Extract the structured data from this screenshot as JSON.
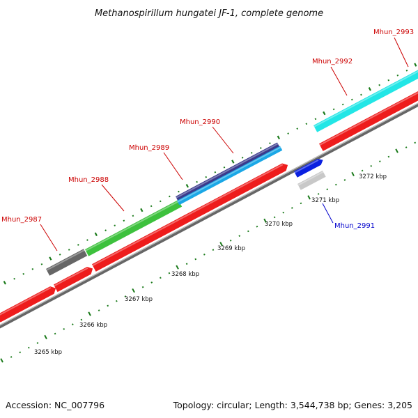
{
  "title": "Methanospirillum hungatei JF-1, complete genome",
  "footer": {
    "accession": "Accession: NC_007796",
    "summary": "Topology: circular; Length: 3,544,738 bp; Genes: 3,205"
  },
  "colors": {
    "cds": "#ee1c1c",
    "backbone": "#808080",
    "tick": "#1a7a1a",
    "label_red": "#cc0000",
    "label_blue": "#0000cc"
  },
  "scale_ticks": [
    "3265 kbp",
    "3266 kbp",
    "3267 kbp",
    "3268 kbp",
    "3269 kbp",
    "3270 kbp",
    "3271 kbp",
    "3272 kbp"
  ],
  "genes": [
    {
      "name": "Mhun_2987",
      "color": "#666666",
      "label_color": "#cc0000"
    },
    {
      "name": "Mhun_2988",
      "color": "#3dc13d",
      "label_color": "#cc0000"
    },
    {
      "name": "Mhun_2989",
      "color": "#3a3a8c",
      "label_color": "#cc0000"
    },
    {
      "name": "Mhun_2990",
      "color": "#1aa7e6",
      "label_color": "#cc0000"
    },
    {
      "name": "Mhun_2991",
      "color": "#0a20e0",
      "label_color": "#0000cc"
    },
    {
      "name": "Mhun_2992",
      "color": "#22e6e6",
      "label_color": "#cc0000"
    },
    {
      "name": "Mhun_2993",
      "color": "#22e6e6",
      "label_color": "#cc0000"
    }
  ]
}
